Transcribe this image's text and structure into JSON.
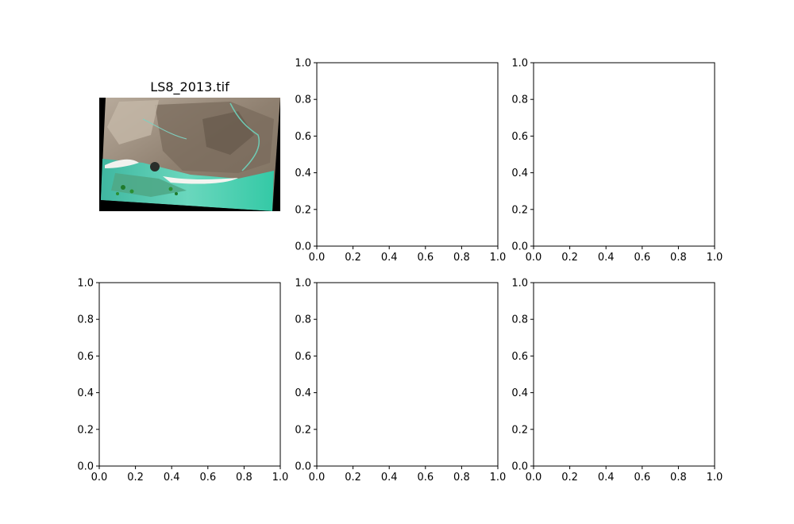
{
  "chart_data": [
    {
      "type": "image",
      "title": "LS8_2013.tif",
      "axis": "off"
    },
    {
      "type": "empty",
      "xlim": [
        0,
        1
      ],
      "ylim": [
        0,
        1
      ],
      "xticks": [
        "0.0",
        "0.2",
        "0.4",
        "0.6",
        "0.8",
        "1.0"
      ],
      "yticks": [
        "0.0",
        "0.2",
        "0.4",
        "0.6",
        "0.8",
        "1.0"
      ]
    },
    {
      "type": "empty",
      "xlim": [
        0,
        1
      ],
      "ylim": [
        0,
        1
      ],
      "xticks": [
        "0.0",
        "0.2",
        "0.4",
        "0.6",
        "0.8",
        "1.0"
      ],
      "yticks": [
        "0.0",
        "0.2",
        "0.4",
        "0.6",
        "0.8",
        "1.0"
      ]
    },
    {
      "type": "empty",
      "xlim": [
        0,
        1
      ],
      "ylim": [
        0,
        1
      ],
      "xticks": [
        "0.0",
        "0.2",
        "0.4",
        "0.6",
        "0.8",
        "1.0"
      ],
      "yticks": [
        "0.0",
        "0.2",
        "0.4",
        "0.6",
        "0.8",
        "1.0"
      ]
    },
    {
      "type": "empty",
      "xlim": [
        0,
        1
      ],
      "ylim": [
        0,
        1
      ],
      "xticks": [
        "0.0",
        "0.2",
        "0.4",
        "0.6",
        "0.8",
        "1.0"
      ],
      "yticks": [
        "0.0",
        "0.2",
        "0.4",
        "0.6",
        "0.8",
        "1.0"
      ]
    },
    {
      "type": "empty",
      "xlim": [
        0,
        1
      ],
      "ylim": [
        0,
        1
      ],
      "xticks": [
        "0.0",
        "0.2",
        "0.4",
        "0.6",
        "0.8",
        "1.0"
      ],
      "yticks": [
        "0.0",
        "0.2",
        "0.4",
        "0.6",
        "0.8",
        "1.0"
      ]
    }
  ]
}
